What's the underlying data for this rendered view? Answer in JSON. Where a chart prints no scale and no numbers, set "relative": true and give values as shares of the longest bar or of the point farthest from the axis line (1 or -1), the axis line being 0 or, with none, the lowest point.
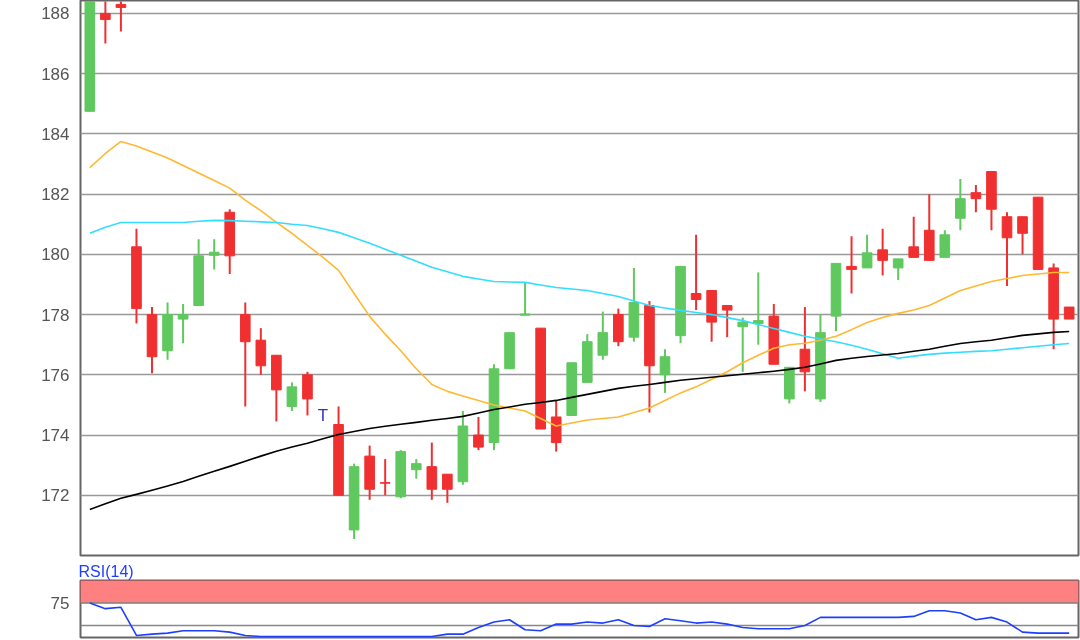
{
  "chart_data": [
    {
      "type": "candlestick",
      "tick_labels": "y",
      "grid": "y",
      "categories": [
        null,
        null,
        null,
        null,
        null,
        null,
        null,
        null,
        null,
        null,
        null,
        null,
        null,
        null,
        null,
        null,
        null,
        null,
        null,
        null,
        null,
        null,
        null,
        null,
        null,
        null,
        null,
        null,
        null,
        null,
        null,
        null,
        null,
        null,
        null,
        null,
        null,
        null,
        null,
        null,
        null,
        null,
        null,
        null,
        null,
        null,
        null,
        null,
        null,
        null,
        null,
        null,
        null,
        null,
        null,
        null,
        null,
        null,
        null,
        null,
        null,
        null,
        null,
        null
      ],
      "ylim": [
        170.0,
        188.43
      ],
      "yticks": [
        172,
        174,
        176,
        178,
        180,
        182,
        184,
        186,
        188
      ],
      "ohlc": [
        [
          184.75,
          188.4,
          184.75,
          188.4
        ],
        [
          188.0,
          188.4,
          187.0,
          187.8
        ],
        [
          188.3,
          188.4,
          187.4,
          188.2
        ],
        [
          180.25,
          180.85,
          177.7,
          178.2
        ],
        [
          178.0,
          178.25,
          176.05,
          176.6
        ],
        [
          176.8,
          178.4,
          176.5,
          178.0
        ],
        [
          177.85,
          178.35,
          177.05,
          178.0
        ],
        [
          178.3,
          180.5,
          178.3,
          179.95
        ],
        [
          179.97,
          180.5,
          179.5,
          180.07
        ],
        [
          181.4,
          181.5,
          179.35,
          179.95
        ],
        [
          178.0,
          178.4,
          174.95,
          177.1
        ],
        [
          177.15,
          177.55,
          176.0,
          176.3
        ],
        [
          176.65,
          176.65,
          174.45,
          175.5
        ],
        [
          174.95,
          175.75,
          174.8,
          175.6
        ],
        [
          176.0,
          176.1,
          174.65,
          175.2
        ],
        null,
        [
          174.35,
          174.95,
          172.0,
          172.0
        ],
        [
          170.85,
          173.05,
          170.55,
          172.95
        ],
        [
          173.3,
          173.65,
          171.85,
          172.2
        ],
        [
          172.42,
          173.2,
          172.0,
          172.4
        ],
        [
          171.95,
          173.5,
          171.9,
          173.45
        ],
        [
          172.85,
          173.2,
          172.55,
          173.05
        ],
        [
          172.95,
          173.75,
          171.85,
          172.2
        ],
        [
          172.7,
          172.7,
          171.75,
          172.2
        ],
        [
          172.45,
          174.8,
          172.35,
          174.3
        ],
        [
          174.0,
          174.6,
          173.5,
          173.6
        ],
        [
          173.75,
          176.35,
          173.5,
          176.2
        ],
        [
          176.2,
          177.4,
          176.2,
          177.4
        ],
        [
          177.98,
          179.05,
          177.98,
          178.02
        ],
        [
          177.55,
          177.55,
          174.2,
          174.2
        ],
        [
          174.6,
          175.15,
          173.45,
          173.75
        ],
        [
          174.65,
          176.4,
          174.65,
          176.4
        ],
        [
          175.75,
          177.35,
          175.75,
          177.1
        ],
        [
          176.65,
          178.1,
          176.5,
          177.4
        ],
        [
          178.0,
          178.2,
          176.95,
          177.1
        ],
        [
          177.25,
          179.55,
          177.1,
          178.4
        ],
        [
          178.3,
          178.45,
          174.75,
          176.3
        ],
        [
          176.0,
          176.85,
          175.4,
          176.6
        ],
        [
          177.3,
          179.6,
          177.05,
          179.6
        ],
        [
          178.7,
          180.65,
          178.15,
          178.5
        ],
        [
          178.8,
          178.8,
          177.1,
          177.75
        ],
        [
          178.3,
          178.3,
          177.25,
          178.15
        ],
        [
          177.6,
          177.9,
          176.1,
          177.75
        ],
        [
          177.7,
          179.4,
          177.0,
          177.8
        ],
        [
          177.95,
          178.35,
          176.35,
          176.35
        ],
        [
          175.2,
          176.25,
          175.05,
          176.25
        ],
        [
          176.85,
          178.25,
          175.45,
          176.1
        ],
        [
          175.2,
          178.0,
          175.1,
          177.4
        ],
        [
          177.95,
          179.7,
          177.45,
          179.7
        ],
        [
          179.6,
          180.6,
          178.7,
          179.5
        ],
        [
          179.55,
          180.65,
          179.55,
          180.05
        ],
        [
          180.15,
          180.85,
          179.3,
          179.8
        ],
        [
          179.55,
          179.85,
          179.15,
          179.85
        ],
        [
          180.25,
          181.25,
          179.9,
          179.9
        ],
        [
          180.8,
          182.0,
          179.8,
          179.8
        ],
        [
          179.9,
          180.8,
          179.9,
          180.65
        ],
        [
          181.2,
          182.5,
          180.8,
          181.85
        ],
        [
          182.05,
          182.3,
          181.4,
          181.85
        ],
        [
          182.75,
          182.75,
          180.8,
          181.5
        ],
        [
          181.25,
          181.4,
          178.95,
          180.55
        ],
        [
          181.25,
          181.25,
          180.0,
          180.7
        ],
        [
          181.9,
          181.9,
          179.5,
          179.5
        ],
        [
          179.55,
          179.7,
          176.85,
          177.85
        ],
        [
          178.25,
          178.25,
          177.85,
          177.85
        ]
      ],
      "colors": [
        "#5fc85f",
        "#f03030",
        "#f03030",
        "#f03030",
        "#f03030",
        "#5fc85f",
        "#5fc85f",
        "#5fc85f",
        "#5fc85f",
        "#f03030",
        "#f03030",
        "#f03030",
        "#f03030",
        "#5fc85f",
        "#f03030",
        null,
        "#f03030",
        "#5fc85f",
        "#f03030",
        "#f03030",
        "#5fc85f",
        "#5fc85f",
        "#f03030",
        "#f03030",
        "#5fc85f",
        "#f03030",
        "#5fc85f",
        "#5fc85f",
        "#5fc85f",
        "#f03030",
        "#f03030",
        "#5fc85f",
        "#5fc85f",
        "#5fc85f",
        "#f03030",
        "#5fc85f",
        "#f03030",
        "#5fc85f",
        "#5fc85f",
        "#f03030",
        "#f03030",
        "#f03030",
        "#5fc85f",
        "#5fc85f",
        "#f03030",
        "#5fc85f",
        "#f03030",
        "#5fc85f",
        "#5fc85f",
        "#f03030",
        "#5fc85f",
        "#f03030",
        "#5fc85f",
        "#f03030",
        "#f03030",
        "#5fc85f",
        "#5fc85f",
        "#f03030",
        "#f03030",
        "#f03030",
        "#f03030",
        "#f03030",
        "#f03030",
        "#f03030"
      ],
      "series": [
        {
          "type": "line",
          "color": "#ffb833",
          "values": [
            182.88,
            183.35,
            183.75,
            183.6,
            183.4,
            183.2,
            182.95,
            182.7,
            182.45,
            182.2,
            181.8,
            181.45,
            181.06,
            180.7,
            180.3,
            179.9,
            179.47,
            178.7,
            177.94,
            177.35,
            176.8,
            176.2,
            175.68,
            175.45,
            175.3,
            175.15,
            175.0,
            174.9,
            174.8,
            174.55,
            174.3,
            174.4,
            174.5,
            174.55,
            174.6,
            174.75,
            174.9,
            175.15,
            175.4,
            175.6,
            175.85,
            176.1,
            176.4,
            176.65,
            176.88,
            177.0,
            177.05,
            177.15,
            177.28,
            177.5,
            177.74,
            177.9,
            178.04,
            178.15,
            178.3,
            178.55,
            178.8,
            178.95,
            179.1,
            179.2,
            179.3,
            179.35,
            179.4,
            179.4
          ]
        },
        {
          "type": "line",
          "color": "#33ddff",
          "values": [
            180.7,
            180.9,
            181.06,
            181.06,
            181.06,
            181.06,
            181.06,
            181.1,
            181.13,
            181.12,
            181.1,
            181.08,
            181.06,
            181.0,
            180.96,
            180.85,
            180.73,
            180.55,
            180.37,
            180.17,
            179.97,
            179.77,
            179.57,
            179.42,
            179.27,
            179.18,
            179.1,
            179.08,
            179.07,
            178.98,
            178.9,
            178.85,
            178.8,
            178.7,
            178.6,
            178.45,
            178.3,
            178.22,
            178.14,
            178.07,
            178.0,
            177.9,
            177.8,
            177.67,
            177.54,
            177.41,
            177.28,
            177.19,
            177.1,
            176.98,
            176.85,
            176.7,
            176.55,
            176.62,
            176.68,
            176.72,
            176.75,
            176.78,
            176.8,
            176.85,
            176.9,
            176.95,
            177.0,
            177.04
          ]
        },
        {
          "type": "line",
          "color": "#000000",
          "values": [
            171.53,
            171.72,
            171.9,
            172.03,
            172.17,
            172.31,
            172.46,
            172.63,
            172.8,
            172.96,
            173.13,
            173.3,
            173.46,
            173.6,
            173.73,
            173.88,
            174.02,
            174.12,
            174.22,
            174.29,
            174.36,
            174.42,
            174.49,
            174.55,
            174.62,
            174.73,
            174.85,
            174.93,
            175.02,
            175.08,
            175.15,
            175.25,
            175.35,
            175.45,
            175.55,
            175.62,
            175.68,
            175.75,
            175.82,
            175.87,
            175.92,
            175.97,
            176.02,
            176.07,
            176.12,
            176.18,
            176.25,
            176.36,
            176.48,
            176.55,
            176.61,
            176.66,
            176.71,
            176.78,
            176.85,
            176.95,
            177.04,
            177.1,
            177.15,
            177.23,
            177.31,
            177.36,
            177.41,
            177.44
          ]
        }
      ],
      "annotations": [
        "T"
      ]
    },
    {
      "type": "line",
      "title": "RSI(14)",
      "relative": true,
      "tick_labels": false,
      "categories": [
        null,
        null,
        null,
        null,
        null,
        null,
        null,
        null,
        null,
        null,
        null,
        null,
        null,
        null,
        null,
        null,
        null,
        null,
        null,
        null,
        null,
        null,
        null,
        null,
        null,
        null,
        null,
        null,
        null,
        null,
        null,
        null,
        null,
        null,
        null,
        null,
        null,
        null,
        null,
        null,
        null,
        null,
        null,
        null,
        null,
        null,
        null,
        null,
        null,
        null,
        null,
        null,
        null,
        null,
        null,
        null,
        null,
        null,
        null,
        null,
        null,
        null,
        null,
        null
      ],
      "series": [
        {
          "color": "#1f3fff",
          "values": [
            1.0,
            0.83,
            0.87,
            0.03,
            0.07,
            0.1,
            0.17,
            0.17,
            0.17,
            0.13,
            0.03,
            0.0,
            0.0,
            0.0,
            0.0,
            0.0,
            0.0,
            0.0,
            0.0,
            0.0,
            0.0,
            0.0,
            0.0,
            0.07,
            0.07,
            0.27,
            0.43,
            0.5,
            0.2,
            0.17,
            0.37,
            0.37,
            0.43,
            0.4,
            0.5,
            0.33,
            0.3,
            0.53,
            0.47,
            0.4,
            0.43,
            0.37,
            0.27,
            0.23,
            0.23,
            0.23,
            0.33,
            0.57,
            0.57,
            0.57,
            0.57,
            0.57,
            0.57,
            0.6,
            0.77,
            0.77,
            0.7,
            0.5,
            0.57,
            0.43,
            0.13,
            0.1,
            0.1,
            0.1
          ]
        }
      ],
      "ref_lines": [
        {
          "axis": "y",
          "value": 1.0,
          "color": "#888888"
        },
        {
          "axis": "y",
          "value": 0.33,
          "color": "#888888"
        }
      ],
      "bands": [
        {
          "axis": "y",
          "from": 1.0,
          "to": 1.67,
          "color": "#ff8080",
          "label": "75"
        }
      ]
    }
  ]
}
